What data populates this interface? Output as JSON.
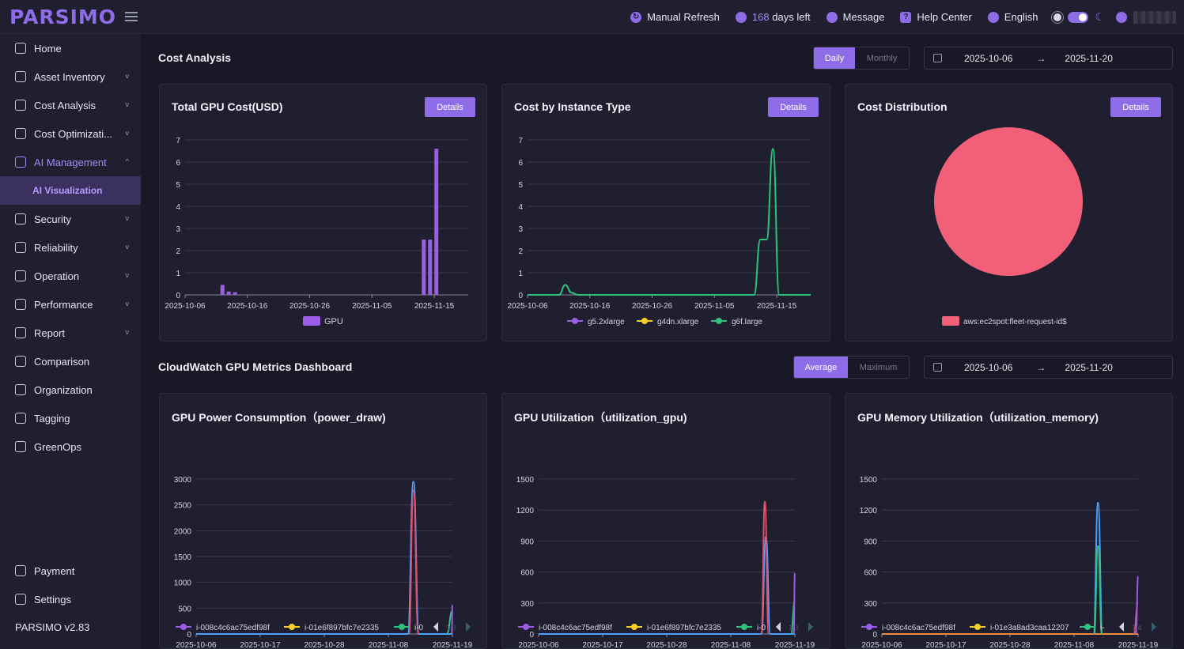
{
  "app": {
    "logo": "PARSIMO",
    "version": "PARSIMO v2.83"
  },
  "topbar": {
    "refresh": "Manual Refresh",
    "days_value": "168",
    "days_label": "days left",
    "message": "Message",
    "help": "Help Center",
    "language": "English"
  },
  "sidebar": {
    "items": [
      {
        "label": "Home",
        "chevron": ""
      },
      {
        "label": "Asset Inventory",
        "chevron": "v"
      },
      {
        "label": "Cost Analysis",
        "chevron": "v"
      },
      {
        "label": "Cost Optimizati...",
        "chevron": "v"
      },
      {
        "label": "AI Management",
        "chevron": "^"
      },
      {
        "label": "AI Visualization",
        "chevron": ""
      },
      {
        "label": "Security",
        "chevron": "v"
      },
      {
        "label": "Reliability",
        "chevron": "v"
      },
      {
        "label": "Operation",
        "chevron": "v"
      },
      {
        "label": "Performance",
        "chevron": "v"
      },
      {
        "label": "Report",
        "chevron": "v"
      },
      {
        "label": "Comparison",
        "chevron": ""
      },
      {
        "label": "Organization",
        "chevron": ""
      },
      {
        "label": "Tagging",
        "chevron": ""
      },
      {
        "label": "GreenOps",
        "chevron": ""
      }
    ],
    "bottom": [
      {
        "label": "Payment"
      },
      {
        "label": "Settings"
      }
    ]
  },
  "cost_section": {
    "title": "Cost Analysis",
    "seg": [
      "Daily",
      "Monthly"
    ],
    "date_from": "2025-10-06",
    "date_to": "2025-11-20"
  },
  "metrics_section": {
    "title": "CloudWatch GPU Metrics Dashboard",
    "seg": [
      "Average",
      "Maximum"
    ],
    "date_from": "2025-10-06",
    "date_to": "2025-11-20"
  },
  "cards": {
    "details_label": "Details",
    "total_gpu": "Total GPU Cost(USD)",
    "instance": "Cost by Instance Type",
    "distribution": "Cost Distribution",
    "power": "GPU Power Consumption（power_draw)",
    "util": "GPU Utilization（utilization_gpu)",
    "memory": "GPU Memory Utilization（utilization_memory)"
  },
  "chart_data": [
    {
      "type": "bar",
      "title": "Total GPU Cost(USD)",
      "x_ticks": [
        "2025-10-06",
        "2025-10-16",
        "2025-10-26",
        "2025-11-05",
        "2025-11-15"
      ],
      "ylim": [
        0,
        7
      ],
      "y_ticks": [
        0,
        1,
        2,
        3,
        4,
        5,
        6,
        7
      ],
      "series": [
        {
          "name": "GPU",
          "color": "#9b5de5",
          "points": [
            [
              6,
              0.45
            ],
            [
              7,
              0.15
            ],
            [
              8,
              0.12
            ],
            [
              38,
              2.5
            ],
            [
              39,
              2.5
            ],
            [
              40,
              6.6
            ]
          ]
        }
      ]
    },
    {
      "type": "line",
      "title": "Cost by Instance Type",
      "x_ticks": [
        "2025-10-06",
        "2025-10-16",
        "2025-10-26",
        "2025-11-05",
        "2025-11-15"
      ],
      "ylim": [
        0,
        7
      ],
      "y_ticks": [
        0,
        1,
        2,
        3,
        4,
        5,
        6,
        7
      ],
      "series": [
        {
          "name": "g5.2xlarge",
          "color": "#9b5de5",
          "points": []
        },
        {
          "name": "g4dn.xlarge",
          "color": "#f6d026",
          "points": []
        },
        {
          "name": "g6f.large",
          "color": "#2ec27e",
          "points": [
            [
              0,
              0
            ],
            [
              5,
              0
            ],
            [
              6,
              0.45
            ],
            [
              7,
              0.1
            ],
            [
              8,
              0
            ],
            [
              36,
              0
            ],
            [
              37,
              2.5
            ],
            [
              38,
              2.5
            ],
            [
              39,
              6.6
            ],
            [
              40,
              0
            ],
            [
              45,
              0
            ]
          ]
        }
      ]
    },
    {
      "type": "pie",
      "title": "Cost Distribution",
      "slices": [
        {
          "name": "aws:ec2spot:fleet-request-id$",
          "value": 100,
          "color": "#f25f79"
        }
      ]
    },
    {
      "type": "line",
      "title": "GPU Power Consumption（power_draw)",
      "x_ticks": [
        "2025-10-06",
        "2025-10-17",
        "2025-10-28",
        "2025-11-08",
        "2025-11-19"
      ],
      "ylim": [
        0,
        3000
      ],
      "y_ticks": [
        0,
        500,
        1000,
        1500,
        2000,
        2500,
        3000
      ],
      "legend": [
        "i-008c4c6ac75edf98f",
        "i-01e6f897bfc7e2335",
        "i-0"
      ],
      "legend_colors": [
        "#9b5de5",
        "#f6d026",
        "#2ec27e"
      ],
      "legend_page": "1/3",
      "series": [
        {
          "name": "",
          "color": "#4aa3ff",
          "points": [
            [
              0,
              0
            ],
            [
              38,
              0
            ],
            [
              39,
              2950
            ],
            [
              40,
              0
            ],
            [
              46,
              0
            ]
          ]
        },
        {
          "name": "",
          "color": "#e0506a",
          "points": [
            [
              38.2,
              0
            ],
            [
              39,
              2780
            ],
            [
              39.9,
              0
            ]
          ]
        },
        {
          "name": "",
          "color": "#2ec27e",
          "points": [
            [
              45,
              0
            ],
            [
              46,
              450
            ]
          ]
        },
        {
          "name": "",
          "color": "#9b5de5",
          "points": [
            [
              45.9,
              0
            ],
            [
              46,
              560
            ]
          ]
        }
      ]
    },
    {
      "type": "line",
      "title": "GPU Utilization（utilization_gpu)",
      "x_ticks": [
        "2025-10-06",
        "2025-10-17",
        "2025-10-28",
        "2025-11-08",
        "2025-11-19"
      ],
      "ylim": [
        0,
        1500
      ],
      "y_ticks": [
        0,
        300,
        600,
        900,
        1200,
        1500
      ],
      "legend": [
        "i-008c4c6ac75edf98f",
        "i-01e6f897bfc7e2335",
        "i-0"
      ],
      "legend_colors": [
        "#9b5de5",
        "#f6d026",
        "#2ec27e"
      ],
      "legend_page": "1/3",
      "series": [
        {
          "name": "",
          "color": "#4aa3ff",
          "points": [
            [
              0,
              0
            ],
            [
              40,
              0
            ],
            [
              40.8,
              940
            ],
            [
              41.6,
              0
            ],
            [
              46,
              0
            ]
          ]
        },
        {
          "name": "",
          "color": "#e0506a",
          "points": [
            [
              40,
              0
            ],
            [
              40.6,
              1280
            ],
            [
              41.3,
              0
            ]
          ]
        },
        {
          "name": "",
          "color": "#2ec27e",
          "points": [
            [
              45.3,
              0
            ],
            [
              46,
              320
            ]
          ]
        },
        {
          "name": "",
          "color": "#9b5de5",
          "points": [
            [
              45.8,
              0
            ],
            [
              46,
              590
            ]
          ]
        }
      ]
    },
    {
      "type": "line",
      "title": "GPU Memory Utilization（utilization_memory)",
      "x_ticks": [
        "2025-10-06",
        "2025-10-17",
        "2025-10-28",
        "2025-11-08",
        "2025-11-19"
      ],
      "ylim": [
        0,
        1500
      ],
      "y_ticks": [
        0,
        300,
        600,
        900,
        1200,
        1500
      ],
      "legend": [
        "i-008c4c6ac75edf98f",
        "i-01e3a8ad3caa12207",
        "i-"
      ],
      "legend_colors": [
        "#9b5de5",
        "#f6d026",
        "#2ec27e"
      ],
      "legend_page": "1/4",
      "series": [
        {
          "name": "",
          "color": "#f08a3c",
          "points": [
            [
              0,
              0
            ],
            [
              46,
              0
            ]
          ]
        },
        {
          "name": "",
          "color": "#4aa3ff",
          "points": [
            [
              38,
              0
            ],
            [
              38.8,
              1270
            ],
            [
              39.6,
              0
            ]
          ]
        },
        {
          "name": "",
          "color": "#2ec27e",
          "points": [
            [
              38.1,
              0
            ],
            [
              38.8,
              850
            ],
            [
              39.5,
              0
            ]
          ]
        },
        {
          "name": "",
          "color": "#e0506a",
          "points": [
            [
              45.2,
              0
            ],
            [
              46,
              300
            ]
          ]
        },
        {
          "name": "",
          "color": "#9b5de5",
          "points": [
            [
              45.6,
              0
            ],
            [
              46,
              560
            ]
          ]
        }
      ]
    }
  ]
}
